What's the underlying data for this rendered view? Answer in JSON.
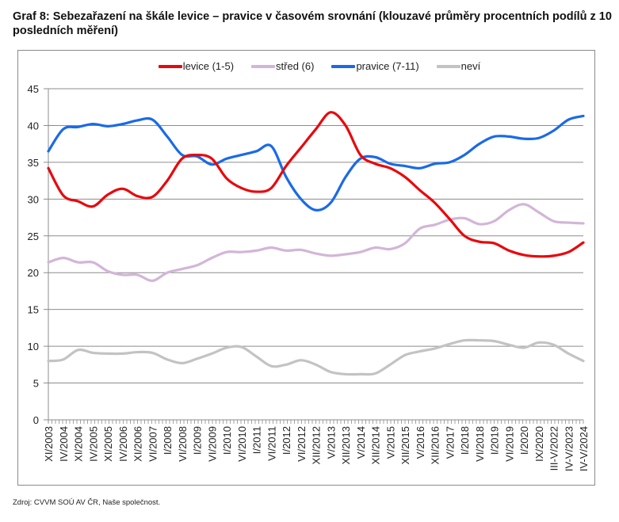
{
  "title": "Graf 8: Sebezařazení na škále levice – pravice v časovém srovnání (klouzavé průměry procentních podílů z 10 posledních měření)",
  "source": "Zdroj: CVVM SOÚ AV ČR, Naše společnost.",
  "chart_data": {
    "type": "line",
    "title": "Graf 8: Sebezařazení na škále levice – pravice v časovém srovnání (klouzavé průměry procentních podílů z 10 posledních měření)",
    "xlabel": "",
    "ylabel": "",
    "ylim": [
      0,
      45
    ],
    "yticks": [
      0,
      5,
      10,
      15,
      20,
      25,
      30,
      35,
      40,
      45
    ],
    "grid": true,
    "legend_position": "top-center",
    "categories": [
      "XI/2003",
      "IV/2004",
      "XI/2004",
      "IV/2005",
      "XI/2005",
      "IV/2006",
      "XI/2006",
      "VI/2007",
      "I/2008",
      "VI/2008",
      "I/2009",
      "VI/2009",
      "I/2010",
      "VI/2010",
      "I/2011",
      "VI/2011",
      "I/2012",
      "VI/2012",
      "XII/2012",
      "V/2013",
      "XII/2013",
      "V/2014",
      "XII/2014",
      "V/2015",
      "XII/2015",
      "V/2016",
      "XII/2016",
      "V/2017",
      "I/2018",
      "VI/2018",
      "I/2019",
      "VI/2019",
      "I/2020",
      "IX/2020",
      "III-V/2022",
      "IV-V/2023",
      "IV-V/2024"
    ],
    "series": [
      {
        "name": "levice (1-5)",
        "color": "#e8080c",
        "values": [
          34.2,
          30.5,
          29.7,
          29.0,
          30.6,
          31.4,
          30.4,
          30.3,
          32.5,
          35.5,
          36.0,
          35.5,
          32.8,
          31.5,
          31.0,
          31.5,
          34.5,
          37.0,
          39.5,
          41.8,
          40.0,
          36.0,
          34.8,
          34.2,
          33.0,
          31.2,
          29.5,
          27.3,
          25.0,
          24.2,
          24.0,
          23.0,
          22.4,
          22.2,
          22.3,
          22.8,
          24.1
        ]
      },
      {
        "name": "střed (6)",
        "color": "#d3b5d8",
        "values": [
          21.4,
          22.0,
          21.4,
          21.4,
          20.2,
          19.7,
          19.7,
          18.9,
          20.0,
          20.5,
          21.0,
          22.0,
          22.8,
          22.8,
          23.0,
          23.4,
          23.0,
          23.1,
          22.6,
          22.3,
          22.5,
          22.8,
          23.4,
          23.2,
          24.0,
          26.0,
          26.5,
          27.2,
          27.4,
          26.6,
          27.0,
          28.5,
          29.3,
          28.2,
          27.0,
          26.8,
          26.7
        ]
      },
      {
        "name": "pravice (7-11)",
        "color": "#1a6ae8",
        "values": [
          36.5,
          39.5,
          39.8,
          40.2,
          39.9,
          40.2,
          40.7,
          40.8,
          38.5,
          36.0,
          35.8,
          34.7,
          35.5,
          36.0,
          36.5,
          37.2,
          33.0,
          30.0,
          28.5,
          29.5,
          33.0,
          35.5,
          35.7,
          34.8,
          34.5,
          34.2,
          34.8,
          35.0,
          36.0,
          37.5,
          38.5,
          38.5,
          38.2,
          38.3,
          39.3,
          40.8,
          41.3
        ]
      },
      {
        "name": "neví",
        "color": "#c3c3c3",
        "values": [
          8.0,
          8.2,
          9.5,
          9.1,
          9.0,
          9.0,
          9.2,
          9.1,
          8.2,
          7.7,
          8.3,
          9.0,
          9.8,
          9.9,
          8.6,
          7.3,
          7.5,
          8.1,
          7.5,
          6.5,
          6.2,
          6.2,
          6.3,
          7.5,
          8.8,
          9.3,
          9.7,
          10.3,
          10.8,
          10.8,
          10.7,
          10.2,
          9.8,
          10.5,
          10.2,
          9.0,
          8.0
        ]
      }
    ]
  }
}
